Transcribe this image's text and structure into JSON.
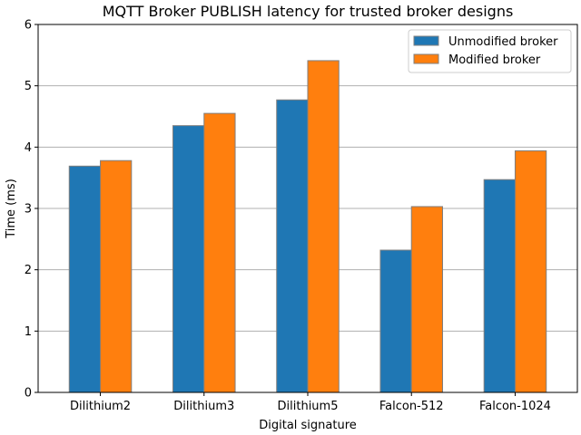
{
  "chart_data": {
    "type": "bar",
    "title": "MQTT Broker PUBLISH latency for trusted broker designs",
    "xlabel": "Digital signature",
    "ylabel": "Time (ms)",
    "categories": [
      "Dilithium2",
      "Dilithium3",
      "Dilithium5",
      "Falcon-512",
      "Falcon-1024"
    ],
    "series": [
      {
        "name": "Unmodified broker",
        "values": [
          3.69,
          4.35,
          4.77,
          2.32,
          3.47
        ],
        "color": "#1f77b4"
      },
      {
        "name": "Modified broker",
        "values": [
          3.78,
          4.55,
          5.41,
          3.03,
          3.94
        ],
        "color": "#ff7f0e"
      }
    ],
    "ylim": [
      0,
      6
    ],
    "yticks": [
      "0",
      "1",
      "2",
      "3",
      "4",
      "5",
      "6"
    ],
    "grid": "horizontal",
    "legend_position": "top-right"
  }
}
